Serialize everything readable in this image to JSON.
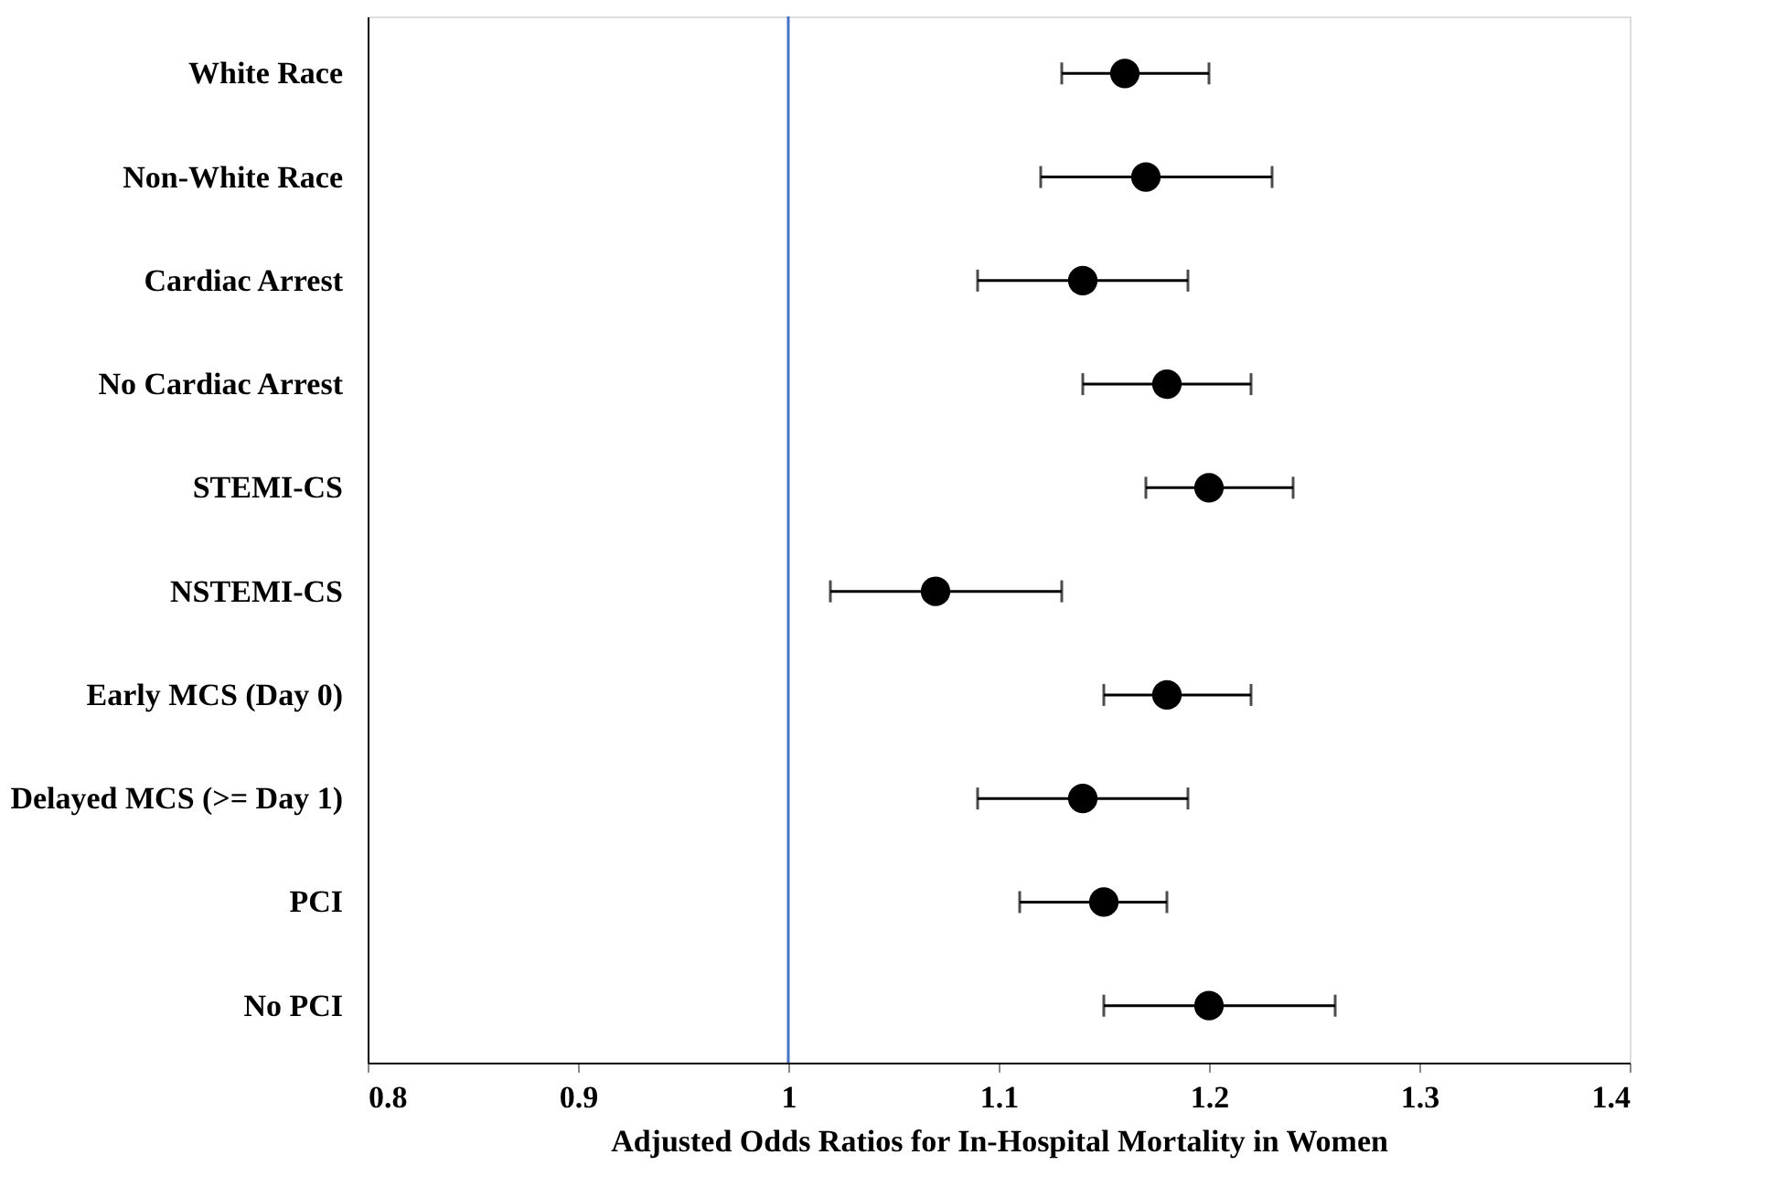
{
  "chart_data": {
    "type": "scatter",
    "xlabel": "Adjusted Odds Ratios for In-Hospital Mortality in Women",
    "orientation": "horizontal",
    "categories": [
      "White Race",
      "Non-White Race",
      "Cardiac Arrest",
      "No Cardiac Arrest",
      "STEMI-CS",
      "NSTEMI-CS",
      "Early MCS (Day 0)",
      "Delayed MCS (>= Day 1)",
      "PCI",
      "No PCI"
    ],
    "values": [
      1.16,
      1.17,
      1.14,
      1.18,
      1.2,
      1.07,
      1.18,
      1.14,
      1.15,
      1.2
    ],
    "errors": [
      [
        1.13,
        1.2
      ],
      [
        1.12,
        1.23
      ],
      [
        1.09,
        1.19
      ],
      [
        1.14,
        1.22
      ],
      [
        1.17,
        1.24
      ],
      [
        1.02,
        1.13
      ],
      [
        1.15,
        1.22
      ],
      [
        1.09,
        1.19
      ],
      [
        1.11,
        1.18
      ],
      [
        1.15,
        1.26
      ]
    ],
    "color": "#000000",
    "marker": "circle",
    "grid": false,
    "xlim": [
      0.8,
      1.4
    ],
    "xticks": [
      0.8,
      0.9,
      1,
      1.1,
      1.2,
      1.3,
      1.4
    ],
    "ref_lines": [
      {
        "axis": "x",
        "value": 1,
        "color": "#4472c4"
      }
    ]
  }
}
